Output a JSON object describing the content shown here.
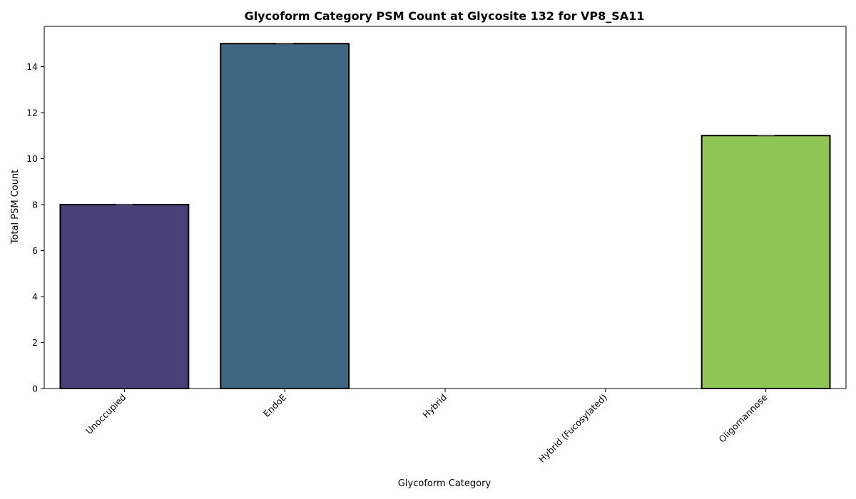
{
  "chart_data": {
    "type": "bar",
    "title": "Glycoform Category PSM Count at Glycosite 132 for VP8_SA11",
    "xlabel": "Glycoform Category",
    "ylabel": "Total PSM Count",
    "categories": [
      "Unoccupied",
      "EndoE",
      "Hybrid",
      "Hybrid (Fucosylated)",
      "Oligomannose"
    ],
    "values": [
      8,
      15,
      0,
      0,
      11
    ],
    "colors": [
      "#4a4079",
      "#3e6681",
      "#2e9b8a",
      "#4fbf6e",
      "#8fc555"
    ],
    "edge_color": "#000000",
    "errorbar_color": "#4d4d4d",
    "ylim": [
      0,
      15.75
    ],
    "yticks": [
      0,
      2,
      4,
      6,
      8,
      10,
      12,
      14
    ],
    "grid": false,
    "legend": "none"
  }
}
